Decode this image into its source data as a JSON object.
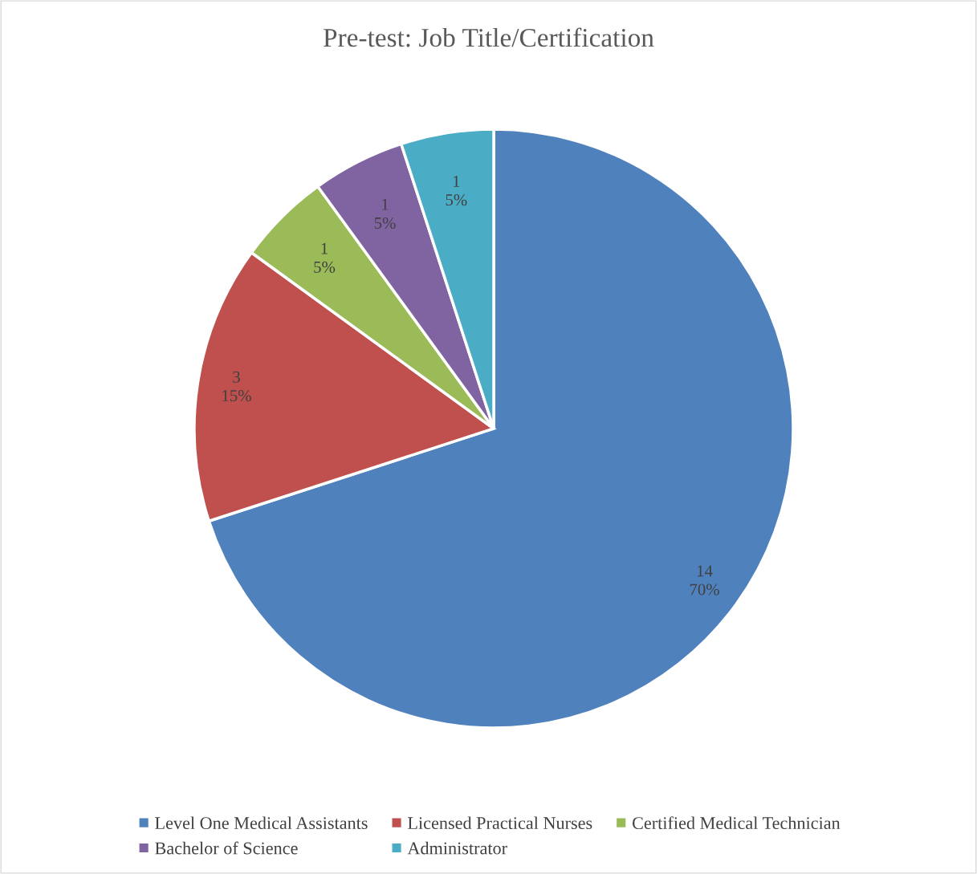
{
  "chart_data": {
    "type": "pie",
    "title": "Pre-test: Job Title/Certification",
    "categories": [
      "Level One Medical Assistants",
      "Licensed Practical Nurses",
      "Certified Medical Technician",
      "Bachelor of Science",
      "Administrator"
    ],
    "values": [
      14,
      3,
      1,
      1,
      1
    ],
    "colors": [
      "#4f81bd",
      "#c0504d",
      "#9bbb59",
      "#8064a2",
      "#4bacc6"
    ],
    "value_labels": [
      "14\n70%",
      "3\n15%",
      "1\n5%",
      "1\n5%",
      "1\n5%"
    ],
    "legend": "bottom"
  }
}
